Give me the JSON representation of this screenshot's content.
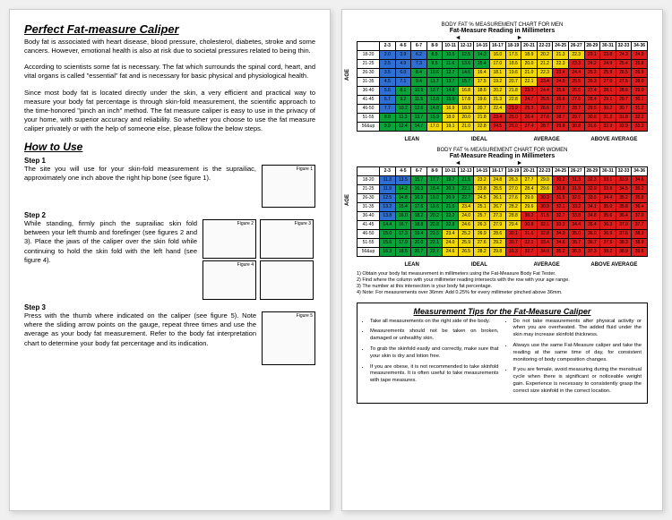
{
  "left": {
    "title": "Perfect Fat-measure Caliper",
    "p1": "Body fat is associated with heart disease, blood pressure, cholesterol, diabetes, stroke and some cancers. However, emotional health is also at risk due to societal pressures related to being thin.",
    "p2": "According to scientists some fat is necessary. The fat which surrounds the spinal cord, heart, and vital organs is called \"essential\" fat and is necessary for basic physical and physiological health.",
    "p3": "Since most body fat is located directly under the skin, a very efficient and practical way to measure your body fat percentage is through skin-fold measurement, the scientific approach to the time-honored \"pinch an inch\" method. The fat measure caliper is easy to use in the privacy of your home, with superior accuracy and reliability. So whether you choose to use the fat measure caliper privately or with the help of someone else, please follow the below steps.",
    "howto": "How to Use",
    "step1_label": "Step 1",
    "step1_text": "The site you will use for your skin-fold measurement is the suprailiac, approximately one inch above the right hip bone (see figure 1).",
    "step2_label": "Step 2",
    "step2_text": "While standing, firmly pinch the suprailiac skin fold between your left thumb and forefinger (see figures 2 and 3). Place the jaws of the caliper over the skin fold while continuing to hold the skin fold with the left hand (see figure 4).",
    "step3_label": "Step 3",
    "step3_text": "Press with the thumb where indicated on the caliper (see figure 5). Note where the sliding arrow points on the gauge, repeat three times and use the average as your body fat measurement. Refer to the body fat interpretation chart to determine your body fat percentage and its indication.",
    "fig1": "Figure 1",
    "fig2": "Figure 2",
    "fig3": "Figure 3",
    "fig4": "Figure 4",
    "fig5": "Figure 5"
  },
  "right": {
    "men_small": "BODY FAT % MEASUREMENT CHART FOR MEN",
    "women_small": "BODY FAT % MEASUREMENT CHART FOR WOMEN",
    "reading": "Fat-Measure Reading in Millimeters",
    "age": "AGE",
    "mm_cols": [
      "2-3",
      "4-5",
      "6-7",
      "8-9",
      "10-11",
      "12-13",
      "14-15",
      "16-17",
      "18-19",
      "20-21",
      "22-23",
      "24-25",
      "26-27",
      "28-29",
      "30-31",
      "32-33",
      "34-36"
    ],
    "age_rows": [
      "18-20",
      "21-25",
      "26-30",
      "31-35",
      "36-40",
      "41-45",
      "46-50",
      "51-55",
      "56&up"
    ],
    "men_data": [
      [
        2.0,
        3.9,
        6.2,
        8.5,
        10.5,
        12.5,
        14.3,
        16.0,
        17.5,
        18.9,
        20.2,
        21.3,
        22.3,
        23.1,
        23.8,
        24.3,
        24.9
      ],
      [
        2.5,
        4.9,
        7.3,
        9.5,
        11.6,
        13.6,
        15.4,
        17.0,
        18.6,
        20.0,
        21.2,
        22.3,
        23.3,
        24.2,
        24.9,
        25.4,
        25.8
      ],
      [
        3.5,
        6.0,
        8.4,
        10.6,
        12.7,
        14.6,
        16.4,
        18.1,
        19.6,
        21.0,
        22.3,
        23.4,
        24.4,
        25.2,
        25.9,
        26.5,
        26.9
      ],
      [
        4.5,
        7.1,
        9.4,
        11.7,
        13.7,
        15.7,
        17.5,
        19.2,
        20.7,
        22.1,
        23.4,
        24.5,
        25.5,
        26.3,
        27.0,
        27.5,
        28.0
      ],
      [
        5.6,
        8.1,
        10.5,
        12.7,
        14.8,
        16.8,
        18.6,
        20.2,
        21.8,
        23.2,
        24.4,
        25.6,
        26.5,
        27.4,
        28.1,
        28.6,
        29.0
      ],
      [
        6.7,
        9.2,
        11.5,
        13.8,
        15.9,
        17.8,
        19.6,
        21.3,
        22.8,
        24.7,
        25.5,
        26.6,
        27.6,
        28.4,
        29.1,
        29.7,
        30.1
      ],
      [
        7.7,
        10.2,
        12.6,
        14.8,
        16.9,
        18.9,
        20.7,
        22.4,
        23.9,
        25.3,
        26.6,
        27.7,
        28.7,
        29.5,
        30.2,
        30.7,
        31.2
      ],
      [
        8.8,
        11.3,
        13.7,
        15.9,
        18.0,
        20.0,
        21.8,
        23.4,
        25.0,
        26.4,
        27.6,
        28.7,
        29.7,
        30.6,
        31.2,
        31.8,
        32.2
      ],
      [
        9.9,
        12.4,
        14.7,
        17.0,
        19.1,
        21.0,
        22.8,
        24.5,
        26.0,
        27.4,
        28.7,
        29.8,
        30.8,
        31.6,
        32.3,
        32.9,
        33.3
      ]
    ],
    "women_data": [
      [
        11.3,
        13.5,
        15.7,
        17.7,
        19.7,
        21.5,
        23.2,
        24.8,
        26.3,
        27.7,
        29.0,
        30.2,
        31.3,
        32.3,
        33.1,
        33.9,
        34.6
      ],
      [
        11.9,
        14.2,
        16.3,
        18.4,
        20.3,
        22.1,
        23.8,
        25.5,
        27.0,
        28.4,
        29.6,
        30.8,
        31.9,
        32.9,
        33.8,
        34.5,
        35.2
      ],
      [
        12.5,
        14.8,
        16.9,
        19.0,
        20.9,
        22.7,
        24.5,
        26.1,
        27.6,
        29.0,
        30.3,
        31.5,
        32.5,
        33.5,
        34.4,
        35.2,
        35.8
      ],
      [
        13.2,
        15.4,
        17.6,
        19.6,
        21.5,
        23.4,
        25.1,
        26.7,
        28.2,
        29.6,
        30.9,
        32.1,
        33.2,
        34.1,
        35.0,
        35.8,
        36.4
      ],
      [
        13.8,
        16.0,
        18.2,
        20.2,
        22.2,
        24.0,
        25.7,
        27.3,
        28.8,
        30.2,
        31.5,
        32.7,
        33.8,
        34.8,
        35.6,
        36.4,
        37.0
      ],
      [
        14.4,
        16.7,
        18.8,
        20.8,
        22.8,
        24.6,
        26.3,
        27.9,
        29.4,
        30.8,
        32.1,
        33.3,
        34.4,
        35.4,
        36.3,
        37.0,
        37.7
      ],
      [
        15.0,
        17.3,
        19.4,
        21.5,
        23.4,
        25.2,
        26.9,
        28.6,
        30.1,
        31.5,
        32.8,
        34.0,
        35.0,
        36.0,
        36.9,
        37.6,
        38.3
      ],
      [
        15.6,
        17.9,
        20.0,
        22.1,
        24.0,
        25.9,
        27.6,
        29.2,
        30.7,
        32.1,
        33.4,
        34.6,
        35.7,
        36.7,
        37.5,
        38.3,
        38.9
      ],
      [
        16.3,
        18.5,
        20.7,
        22.7,
        24.6,
        26.5,
        28.2,
        29.8,
        31.3,
        32.7,
        34.0,
        35.2,
        36.3,
        37.3,
        38.2,
        38.9,
        39.6
      ]
    ],
    "colors": {
      "lean": "#2f6fd3",
      "ideal": "#0aa33a",
      "average": "#f4d90a",
      "above": "#e01b1b"
    },
    "men_thresholds": {
      "ideal": 8,
      "average": 16,
      "above": 23
    },
    "women_thresholds": {
      "ideal": 14,
      "average": 23,
      "above": 30
    },
    "cats": [
      "LEAN",
      "IDEAL",
      "AVERAGE",
      "ABOVE AVERAGE"
    ],
    "note1": "1) Obtain your body fat measurement in millimeters using the Fat-Measure Body Fat Tester.",
    "note2": "2) Find where the column with your millimeter reading intersects with the row with your age range.",
    "note3": "3) The number at this intersection is your body fat percentage.",
    "note4": "4) Note: For measurements over 36mm: Add 0.25% for every millimeter pinched above 36mm.",
    "tips_title": "Measurement Tips for the Fat-Measure Caliper",
    "tips_left": [
      "Take all measurements on the right side of the body.",
      "Measurements should not be taken on broken, damaged or unhealthy skin.",
      "To grab the skinfold easily and correctly, make sure that your skin is dry and lotion free.",
      "If you are obese, it is not recommended to take skinfold measurements. It is often useful to take measurements with tape measures."
    ],
    "tips_right": [
      "Do not take measurements after physical activity or when you are overheated. The added fluid under the skin may increase skinfold thickness.",
      "Always use the same Fat-Measure caliper and take the reading at the same time of day, for consistent monitoring of body composition changes.",
      "If you are female, avoid measuring during the menstrual cycle when there is significant or noticeable weight gain. Experience is necessary to consistently grasp the correct size skinfold in the correct location."
    ]
  }
}
